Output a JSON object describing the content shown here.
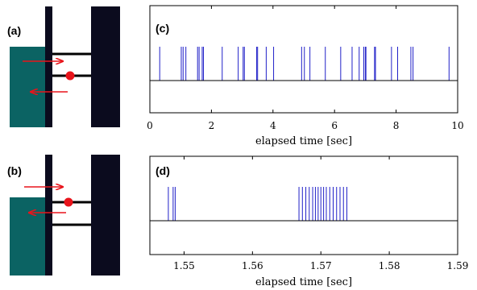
{
  "panels": {
    "a": {
      "label": "(a)"
    },
    "b": {
      "label": "(b)"
    }
  },
  "colors": {
    "block": "#0b6363",
    "wall": "#0b0b1e",
    "bar": "#000000",
    "arrow": "#e8141b",
    "dot": "#e8141b",
    "spike": "#2020c8",
    "frame": "#000000"
  },
  "chart_data": [
    {
      "type": "scatter",
      "panel_label": "(c)",
      "xlabel": "elapsed time [sec]",
      "ylabel": "",
      "xlim": [
        0,
        10
      ],
      "ylim": [
        -1,
        1
      ],
      "x_ticks": [
        0,
        2,
        4,
        6,
        8,
        10
      ],
      "x_tick_labels": [
        "0",
        "2",
        "4",
        "6",
        "8",
        "10"
      ],
      "baseline": 0,
      "spike_height": 1,
      "spike_times": [
        0.32,
        1.02,
        1.08,
        1.17,
        1.55,
        1.6,
        1.7,
        1.74,
        2.35,
        2.87,
        3.03,
        3.07,
        3.47,
        3.5,
        3.78,
        4.02,
        4.93,
        5.02,
        5.2,
        5.7,
        6.2,
        6.57,
        6.8,
        6.95,
        7.0,
        7.02,
        7.3,
        7.33,
        7.85,
        8.05,
        8.48,
        8.55,
        9.72
      ]
    },
    {
      "type": "scatter",
      "panel_label": "(d)",
      "xlabel": "elapsed time [sec]",
      "ylabel": "",
      "xlim": [
        1.545,
        1.59
      ],
      "ylim": [
        -1,
        1
      ],
      "x_ticks": [
        1.55,
        1.56,
        1.57,
        1.58,
        1.59
      ],
      "x_tick_labels": [
        "1.55",
        "1.56",
        "1.57",
        "1.58",
        "1.59"
      ],
      "baseline": 0,
      "spike_height": 1,
      "spike_times": [
        1.5477,
        1.5484,
        1.5487,
        1.5668,
        1.5673,
        1.5678,
        1.5683,
        1.5688,
        1.5692,
        1.5696,
        1.57,
        1.5704,
        1.5708,
        1.5713,
        1.5718,
        1.5723,
        1.5728,
        1.5733,
        1.5738
      ]
    }
  ]
}
